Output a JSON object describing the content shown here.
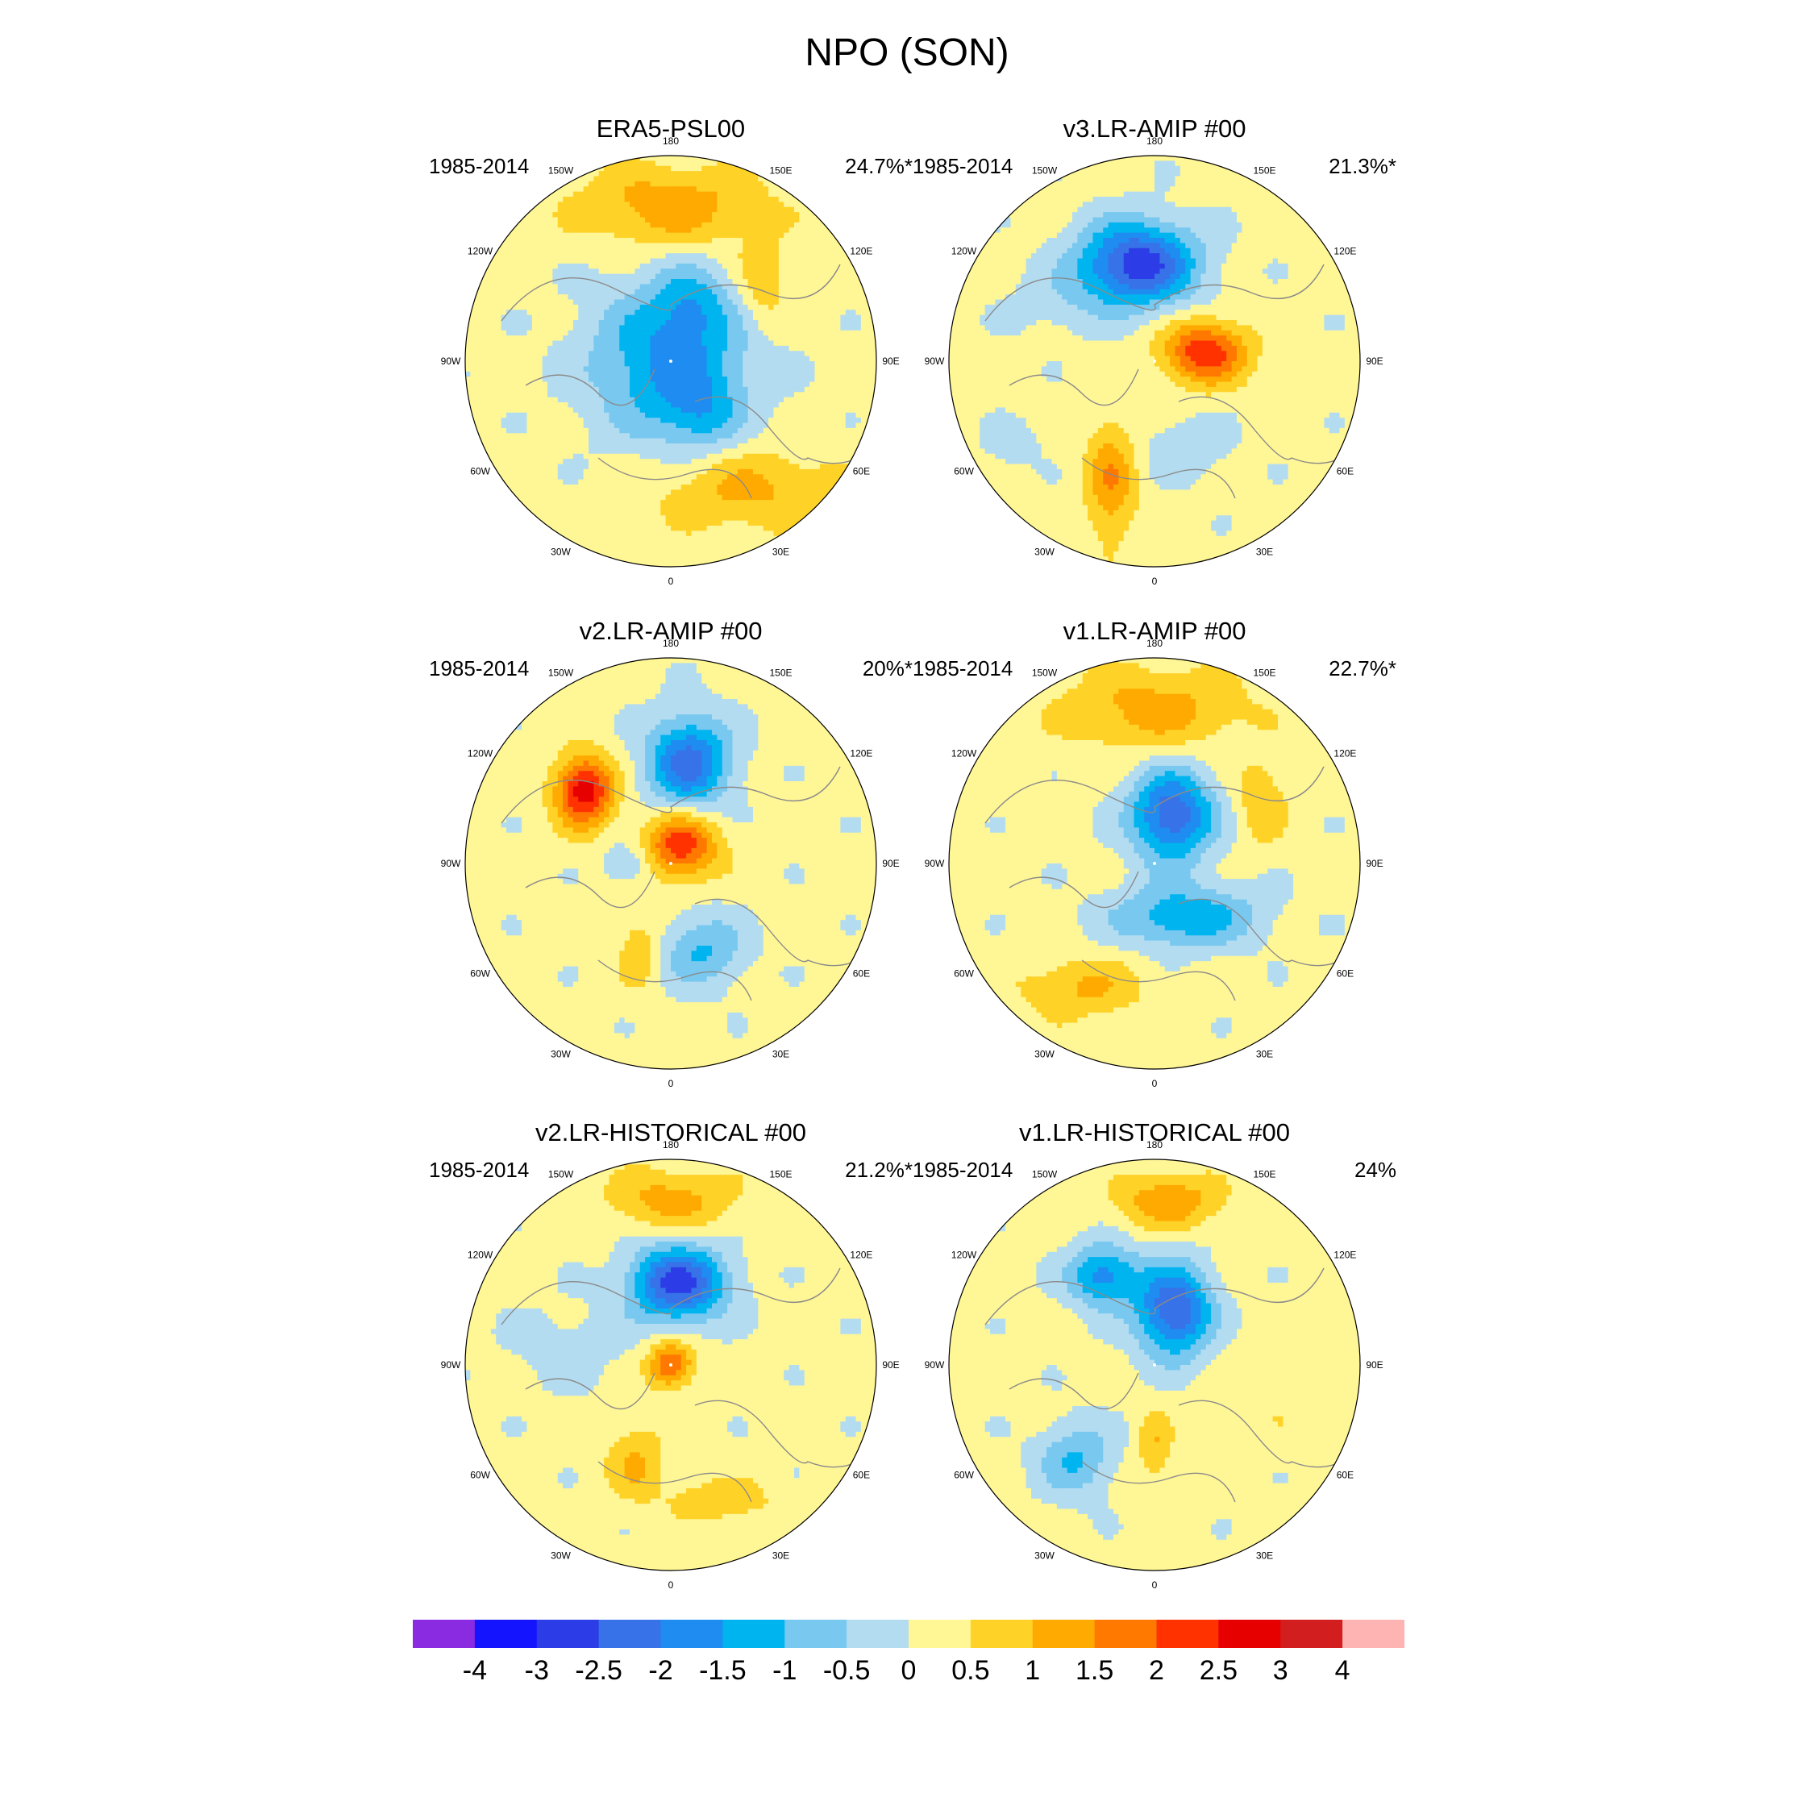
{
  "title": "NPO (SON)",
  "panels": [
    {
      "title": "ERA5-PSL00",
      "period": "1985-2014",
      "variance": "24.7%*",
      "blobs": [
        {
          "lon": 180,
          "r": 0.75,
          "v": 1.2,
          "sx": 0.45,
          "sy": 0.2
        },
        {
          "lon": 30,
          "r": 0.72,
          "v": 1.0,
          "sx": 0.45,
          "sy": 0.2
        },
        {
          "lon": 130,
          "r": 0.58,
          "v": 0.8,
          "sx": 0.12,
          "sy": 0.22
        },
        {
          "lon": 0,
          "r": 0.0,
          "v": -1.8,
          "sx": 0.38,
          "sy": 0.38
        },
        {
          "lon": 160,
          "r": 0.3,
          "v": -0.8,
          "sx": 0.18,
          "sy": 0.18
        },
        {
          "lon": 30,
          "r": 0.3,
          "v": -0.8,
          "sx": 0.18,
          "sy": 0.18
        }
      ]
    },
    {
      "title": "v3.LR-AMIP  #00",
      "period": "1985-2014",
      "variance": "21.3%*",
      "blobs": [
        {
          "lon": -170,
          "r": 0.48,
          "v": -3.0,
          "sx": 0.28,
          "sy": 0.2
        },
        {
          "lon": 100,
          "r": 0.25,
          "v": 2.3,
          "sx": 0.2,
          "sy": 0.15
        },
        {
          "lon": -20,
          "r": 0.62,
          "v": 1.3,
          "sx": 0.12,
          "sy": 0.3
        },
        {
          "lon": -120,
          "r": 0.55,
          "v": -0.4,
          "sx": 0.25,
          "sy": 0.15
        },
        {
          "lon": 20,
          "r": 0.45,
          "v": -0.6,
          "sx": 0.2,
          "sy": 0.15
        },
        {
          "lon": -60,
          "r": 0.8,
          "v": -0.6,
          "sx": 0.12,
          "sy": 0.1
        }
      ]
    },
    {
      "title": "v2.LR-AMIP  #00",
      "period": "1985-2014",
      "variance": "20%*",
      "blobs": [
        {
          "lon": -130,
          "r": 0.55,
          "v": 2.7,
          "sx": 0.14,
          "sy": 0.17
        },
        {
          "lon": 170,
          "r": 0.5,
          "v": -2.4,
          "sx": 0.2,
          "sy": 0.22
        },
        {
          "lon": 150,
          "r": 0.1,
          "v": 2.2,
          "sx": 0.18,
          "sy": 0.16
        },
        {
          "lon": 20,
          "r": 0.45,
          "v": -1.2,
          "sx": 0.2,
          "sy": 0.18
        },
        {
          "lon": -20,
          "r": 0.45,
          "v": 0.8,
          "sx": 0.1,
          "sy": 0.18
        },
        {
          "lon": -90,
          "r": 0.2,
          "v": -0.8,
          "sx": 0.12,
          "sy": 0.1
        }
      ]
    },
    {
      "title": "v1.LR-AMIP  #00",
      "period": "1985-2014",
      "variance": "22.7%*",
      "blobs": [
        {
          "lon": 180,
          "r": 0.75,
          "v": 1.1,
          "sx": 0.45,
          "sy": 0.2
        },
        {
          "lon": 160,
          "r": 0.25,
          "v": -2.6,
          "sx": 0.2,
          "sy": 0.22
        },
        {
          "lon": 30,
          "r": 0.3,
          "v": -1.6,
          "sx": 0.35,
          "sy": 0.15
        },
        {
          "lon": -30,
          "r": 0.7,
          "v": 0.9,
          "sx": 0.3,
          "sy": 0.15
        },
        {
          "lon": 120,
          "r": 0.6,
          "v": 0.8,
          "sx": 0.12,
          "sy": 0.2
        }
      ]
    },
    {
      "title": "v2.LR-HISTORICAL  #00",
      "period": "1985-2014",
      "variance": "21.2%*",
      "blobs": [
        {
          "lon": 180,
          "r": 0.8,
          "v": 1.1,
          "sx": 0.3,
          "sy": 0.15
        },
        {
          "lon": 175,
          "r": 0.4,
          "v": -2.9,
          "sx": 0.23,
          "sy": 0.18
        },
        {
          "lon": 170,
          "r": 0.0,
          "v": 1.9,
          "sx": 0.11,
          "sy": 0.11
        },
        {
          "lon": 20,
          "r": 0.7,
          "v": 0.8,
          "sx": 0.25,
          "sy": 0.1
        },
        {
          "lon": -20,
          "r": 0.5,
          "v": 0.9,
          "sx": 0.14,
          "sy": 0.18
        },
        {
          "lon": -100,
          "r": 0.5,
          "v": -0.4,
          "sx": 0.3,
          "sy": 0.2
        }
      ]
    },
    {
      "title": "v1.LR-HISTORICAL  #00",
      "period": "1985-2014",
      "variance": "24%",
      "blobs": [
        {
          "lon": 175,
          "r": 0.8,
          "v": 1.3,
          "sx": 0.25,
          "sy": 0.13
        },
        {
          "lon": -150,
          "r": 0.5,
          "v": -1.9,
          "sx": 0.17,
          "sy": 0.15
        },
        {
          "lon": 160,
          "r": 0.28,
          "v": -2.7,
          "sx": 0.18,
          "sy": 0.22
        },
        {
          "lon": -40,
          "r": 0.6,
          "v": -1.2,
          "sx": 0.18,
          "sy": 0.18
        },
        {
          "lon": 0,
          "r": 0.4,
          "v": 0.8,
          "sx": 0.08,
          "sy": 0.18
        },
        {
          "lon": 80,
          "r": 0.6,
          "v": 0.3,
          "sx": 0.3,
          "sy": 0.25
        }
      ]
    }
  ],
  "lon_labels": [
    "180",
    "150E",
    "120E",
    "90E",
    "60E",
    "30E",
    "0",
    "30W",
    "60W",
    "90W",
    "120W",
    "150W"
  ],
  "colorbar": {
    "colors": [
      "#8a2be2",
      "#1414ff",
      "#2c3ce6",
      "#3772e8",
      "#1e8cf0",
      "#00b4f0",
      "#78c8f0",
      "#b4dcf0",
      "#fff696",
      "#ffd228",
      "#ffaa00",
      "#ff7800",
      "#ff3200",
      "#e60000",
      "#d21e1e",
      "#ffb4b4"
    ],
    "labels": [
      "-4",
      "-3",
      "-2.5",
      "-2",
      "-1.5",
      "-1",
      "-0.5",
      "0",
      "0.5",
      "1",
      "1.5",
      "2",
      "2.5",
      "3",
      "4"
    ]
  }
}
